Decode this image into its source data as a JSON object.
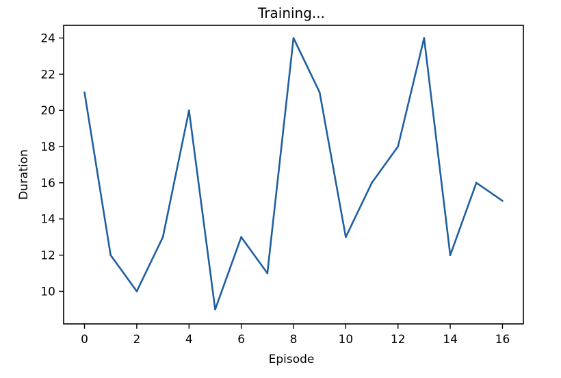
{
  "chart_data": {
    "type": "line",
    "title": "Training...",
    "xlabel": "Episode",
    "ylabel": "Duration",
    "xlim": [
      -0.8,
      16.8
    ],
    "ylim": [
      8.2,
      24.7
    ],
    "xticks": [
      0,
      2,
      4,
      6,
      8,
      10,
      12,
      14,
      16
    ],
    "yticks": [
      10,
      12,
      14,
      16,
      18,
      20,
      22,
      24
    ],
    "grid": false,
    "legend": "none",
    "series": [
      {
        "color": "#1f5fa0",
        "x": [
          0,
          1,
          2,
          3,
          4,
          5,
          6,
          7,
          8,
          9,
          10,
          11,
          12,
          13,
          14,
          15,
          16
        ],
        "y": [
          21,
          12,
          10,
          13,
          20,
          9,
          13,
          11,
          24,
          21,
          13,
          16,
          18,
          24,
          12,
          16,
          15
        ]
      }
    ]
  }
}
